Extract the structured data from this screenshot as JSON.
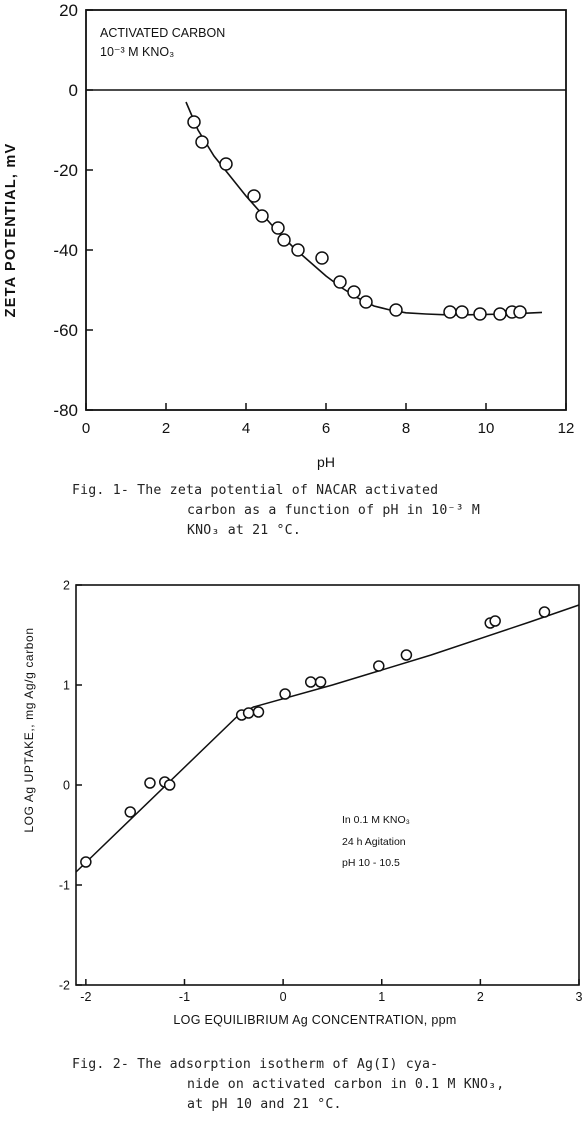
{
  "figure1": {
    "caption_lines": [
      "Fig. 1- The zeta potential of NACAR activated",
      "carbon as a function of pH in 10⁻³ M",
      "KNO₃ at 21 °C."
    ]
  },
  "figure2": {
    "caption_lines": [
      "Fig. 2- The adsorption isotherm of Ag(I) cya-",
      "nide on activated carbon in 0.1 M KNO₃,",
      "at pH 10 and 21 °C."
    ]
  },
  "chart_data": [
    {
      "type": "scatter",
      "xlabel": "pH",
      "ylabel": "ZETA POTENTIAL, mV",
      "xlim": [
        0,
        12
      ],
      "ylim": [
        -80,
        20
      ],
      "x_ticks": [
        0,
        2,
        4,
        6,
        8,
        10,
        12
      ],
      "x_tick_labels": [
        "0",
        "2",
        "4",
        "6",
        "8",
        "10",
        "12"
      ],
      "y_ticks": [
        20,
        0,
        -20,
        -40,
        -60,
        -80
      ],
      "y_tick_labels": [
        "20",
        "0",
        "-20",
        "-40",
        "-60",
        "-80"
      ],
      "annotation_lines": [
        "ACTIVATED CARBON",
        "10⁻³ M  KNO₃"
      ],
      "series": [
        {
          "x": [
            2.7,
            2.9,
            3.5,
            4.2,
            4.4,
            4.8,
            4.95,
            5.3,
            5.9,
            6.35,
            6.7,
            7.0,
            7.75,
            9.1,
            9.4,
            9.85,
            10.35,
            10.65,
            10.85
          ],
          "y": [
            -8,
            -13,
            -18.5,
            -26.5,
            -31.5,
            -34.5,
            -37.5,
            -40,
            -42,
            -48,
            -50.5,
            -53,
            -55,
            -55.5,
            -55.5,
            -56,
            -56,
            -55.5,
            -55.5
          ]
        }
      ],
      "fit_curve": {
        "x": [
          2.5,
          2.8,
          3.2,
          3.6,
          4.0,
          4.4,
          4.8,
          5.2,
          5.6,
          6.0,
          6.4,
          6.8,
          7.2,
          7.6,
          8.0,
          8.5,
          9.0,
          9.5,
          10.0,
          10.5,
          11.0,
          11.4
        ],
        "y": [
          -3,
          -10,
          -16.5,
          -21.5,
          -26.5,
          -31,
          -35.5,
          -39.5,
          -43,
          -46.5,
          -49.5,
          -52,
          -54,
          -55,
          -55.7,
          -56,
          -56.2,
          -56.2,
          -56.1,
          -56,
          -55.8,
          -55.6
        ]
      }
    },
    {
      "type": "scatter",
      "xlabel": "LOG EQUILIBRIUM Ag CONCENTRATION, ppm",
      "ylabel": "LOG Ag UPTAKE,, mg Ag/g carbon",
      "xlim": [
        -2.1,
        3
      ],
      "ylim": [
        -2,
        2
      ],
      "x_ticks": [
        -2,
        -1,
        0,
        1,
        2,
        3
      ],
      "x_tick_labels": [
        "-2",
        "-1",
        "0",
        "1",
        "2",
        "3"
      ],
      "y_ticks": [
        2,
        1,
        0,
        -1,
        -2
      ],
      "y_tick_labels": [
        "2",
        "1",
        "0",
        "-1",
        "-2"
      ],
      "annotation_lines": [
        "In 0.1 M KNO₃",
        "24 h Agitation",
        "pH 10 - 10.5"
      ],
      "series": [
        {
          "x": [
            -2.0,
            -1.55,
            -1.35,
            -1.2,
            -1.15,
            -0.42,
            -0.35,
            -0.25,
            0.02,
            0.28,
            0.38,
            0.97,
            1.25,
            2.1,
            2.15,
            2.65
          ],
          "y": [
            -0.77,
            -0.27,
            0.02,
            0.03,
            0.0,
            0.7,
            0.72,
            0.73,
            0.91,
            1.03,
            1.03,
            1.19,
            1.3,
            1.62,
            1.64,
            1.73
          ]
        }
      ],
      "fit_curve": {
        "x": [
          -2.1,
          -0.45,
          -0.3,
          0.5,
          1.5,
          2.5,
          3.0
        ],
        "y": [
          -0.87,
          0.7,
          0.78,
          1.0,
          1.3,
          1.63,
          1.8
        ]
      }
    }
  ]
}
